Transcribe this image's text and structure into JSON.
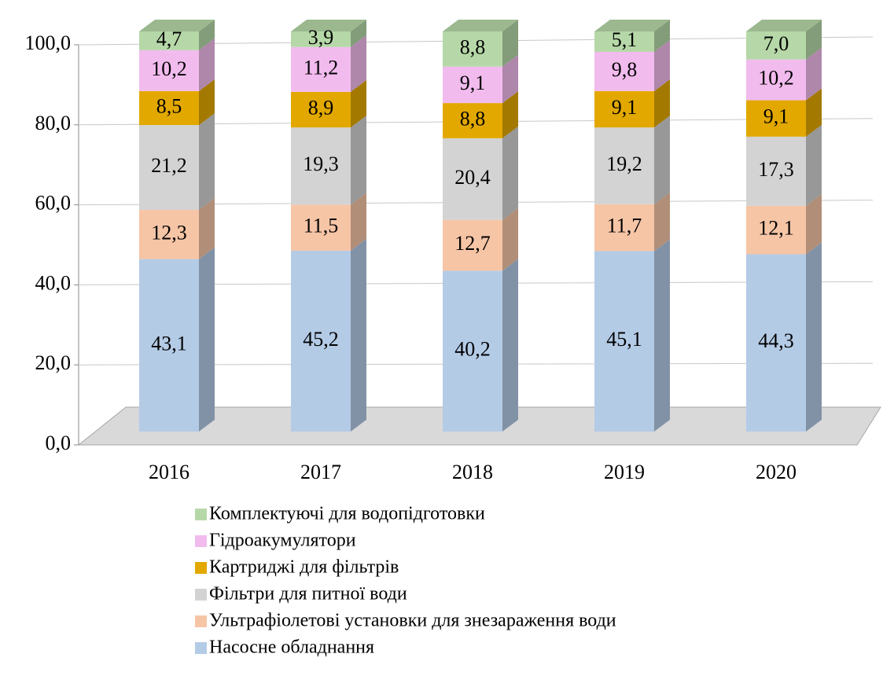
{
  "chart_data": {
    "type": "bar3d_stacked",
    "categories": [
      "2016",
      "2017",
      "2018",
      "2019",
      "2020"
    ],
    "series": [
      {
        "name": "Насосне обладнання",
        "color": "#b4cbe6",
        "values": [
          43.1,
          45.2,
          40.2,
          45.1,
          44.3
        ],
        "value_labels": [
          "43,1",
          "45,2",
          "40,2",
          "45,1",
          "44,3"
        ]
      },
      {
        "name": "Ультрафіолетові установки для знезараження води",
        "color": "#f6c5a6",
        "values": [
          12.3,
          11.5,
          12.7,
          11.7,
          12.1
        ],
        "value_labels": [
          "12,3",
          "11,5",
          "12,7",
          "11,7",
          "12,1"
        ]
      },
      {
        "name": "Фільтри для питної води",
        "color": "#d3d3d3",
        "values": [
          21.2,
          19.3,
          20.4,
          19.2,
          17.3
        ],
        "value_labels": [
          "21,2",
          "19,3",
          "20,4",
          "19,2",
          "17,3"
        ]
      },
      {
        "name": "Картриджі для фільтрів",
        "color": "#e2a800",
        "values": [
          8.5,
          8.9,
          8.8,
          9.1,
          9.1
        ],
        "value_labels": [
          "8,5",
          "8,9",
          "8,8",
          "9,1",
          "9,1"
        ]
      },
      {
        "name": "Гідроакумулятори",
        "color": "#f2bbee",
        "values": [
          10.2,
          11.2,
          9.1,
          9.8,
          10.2
        ],
        "value_labels": [
          "10,2",
          "11,2",
          "9,1",
          "9,8",
          "10,2"
        ]
      },
      {
        "name": "Комплектуючі для водопідготовки",
        "color": "#b6d8a8",
        "values": [
          4.7,
          3.9,
          8.8,
          5.1,
          7.0
        ],
        "value_labels": [
          "4,7",
          "3,9",
          "8,8",
          "5,1",
          "7,0"
        ]
      }
    ],
    "ylim": [
      0,
      100
    ],
    "yticks": [
      {
        "value": 0,
        "label": "0,0"
      },
      {
        "value": 20,
        "label": "20,0"
      },
      {
        "value": 40,
        "label": "40,0"
      },
      {
        "value": 60,
        "label": "60,0"
      },
      {
        "value": 80,
        "label": "80,0"
      },
      {
        "value": 100,
        "label": "100,0"
      }
    ],
    "grid": true,
    "legend": "bottom"
  }
}
